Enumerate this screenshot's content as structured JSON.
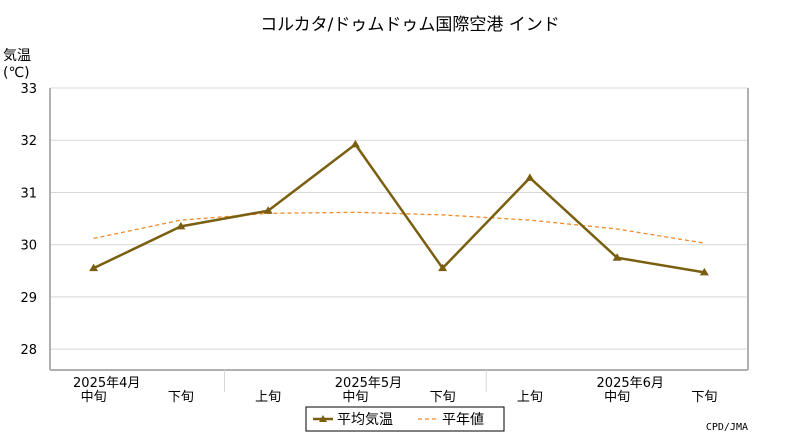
{
  "chart_data": {
    "type": "line",
    "title": "コルカタ/ドゥムドゥム国際空港 インド",
    "ylabel": "気温",
    "yunit": "(℃)",
    "ylim": [
      27.6,
      33
    ],
    "yticks": [
      28,
      29,
      30,
      31,
      32,
      33
    ],
    "grid": true,
    "categories": [
      "中旬",
      "下旬",
      "上旬",
      "中旬",
      "下旬",
      "上旬",
      "中旬",
      "下旬"
    ],
    "month_labels": [
      {
        "label": "2025年4月",
        "category_index": 0
      },
      {
        "label": "2025年5月",
        "category_index": 3
      },
      {
        "label": "2025年6月",
        "category_index": 6
      }
    ],
    "series": [
      {
        "name": "平均気温",
        "style": "solid-triangle",
        "color": "#7a5f10",
        "values": [
          29.55,
          30.35,
          30.65,
          31.92,
          29.55,
          31.28,
          29.75,
          29.47
        ]
      },
      {
        "name": "平年値",
        "style": "dashed",
        "color": "#f08a2a",
        "values": [
          30.12,
          30.47,
          30.6,
          30.62,
          30.57,
          30.47,
          30.3,
          30.03
        ]
      }
    ],
    "legend_position": "bottom-center",
    "credit": "CPD/JMA"
  }
}
